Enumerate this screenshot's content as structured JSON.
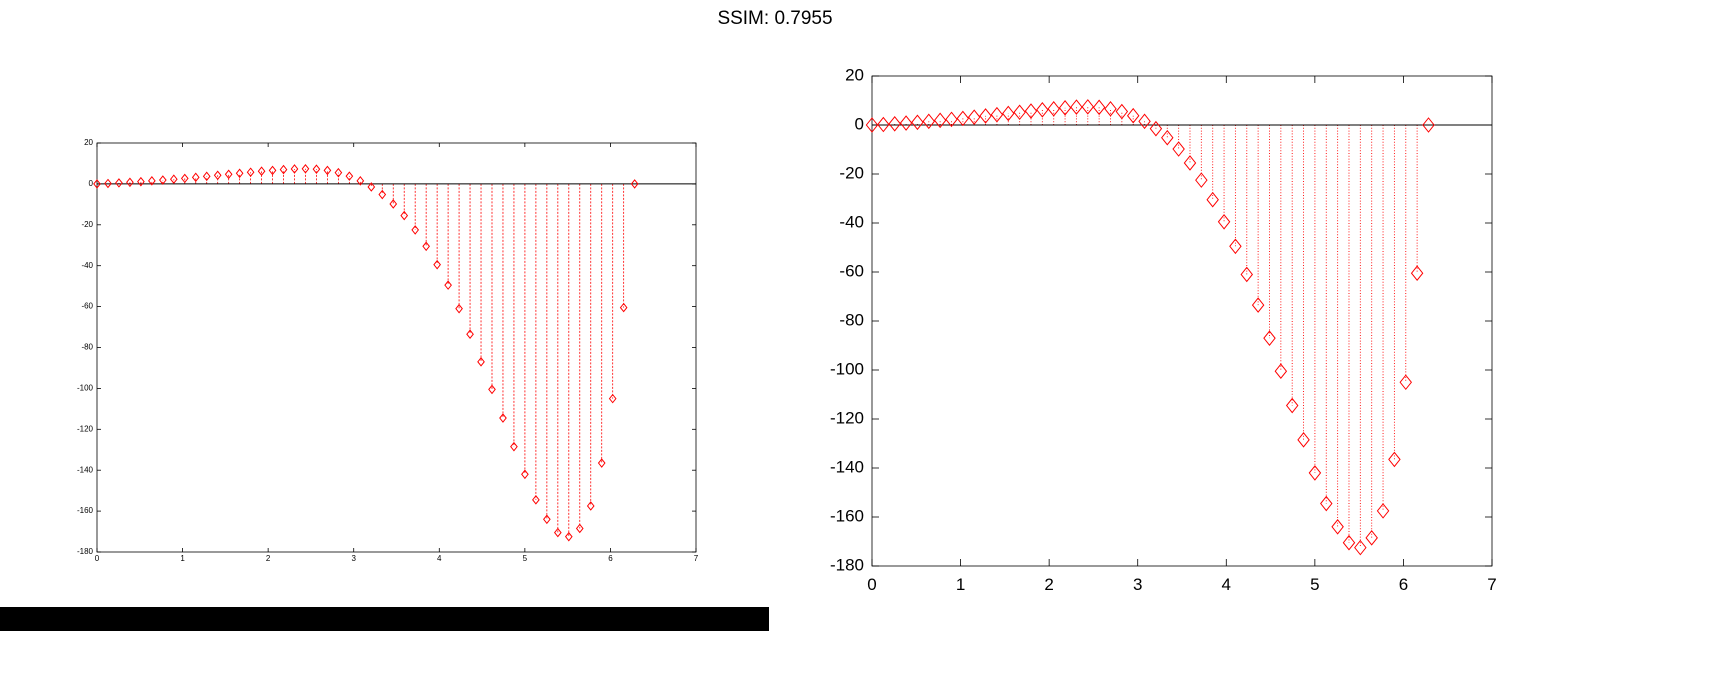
{
  "title": "SSIM: 0.7955",
  "chart_data": [
    {
      "type": "stem",
      "xlim": [
        0,
        7
      ],
      "ylim": [
        -180,
        20
      ],
      "xticks": [
        "0",
        "1",
        "2",
        "3",
        "4",
        "5",
        "6",
        "7"
      ],
      "yticks": [
        "20",
        "0",
        "-20",
        "-40",
        "-60",
        "-80",
        "-100",
        "-120",
        "-140",
        "-160",
        "-180"
      ],
      "marker": "diamond",
      "stem_style": "dashed",
      "color": "#ff0000",
      "baseline_color": "#000000",
      "x": [
        0,
        0.1282,
        0.2564,
        0.3847,
        0.5129,
        0.6411,
        0.7693,
        0.8976,
        1.0258,
        1.154,
        1.2822,
        1.4104,
        1.5387,
        1.6669,
        1.7951,
        1.9233,
        2.0515,
        2.1798,
        2.308,
        2.4362,
        2.5644,
        2.6927,
        2.8209,
        2.9491,
        3.0773,
        3.2055,
        3.3338,
        3.462,
        3.5902,
        3.7184,
        3.8466,
        3.9749,
        4.1031,
        4.2313,
        4.3595,
        4.4878,
        4.616,
        4.7442,
        4.8724,
        5.0006,
        5.1289,
        5.2571,
        5.3853,
        5.5135,
        5.6417,
        5.77,
        5.8982,
        6.0264,
        6.1546,
        6.2832
      ],
      "y": [
        0,
        0.2,
        0.5,
        0.8,
        1.1,
        1.5,
        1.9,
        2.3,
        2.7,
        3.2,
        3.7,
        4.2,
        4.7,
        5.2,
        5.7,
        6.2,
        6.6,
        7.0,
        7.3,
        7.4,
        7.2,
        6.6,
        5.5,
        3.8,
        1.5,
        -1.5,
        -5.2,
        -9.8,
        -15.5,
        -22.5,
        -30.5,
        -39.5,
        -49.5,
        -61,
        -73.5,
        -87,
        -100.5,
        -114.5,
        -128.5,
        -142,
        -154.5,
        -164,
        -170.5,
        -172.5,
        -168.5,
        -157.5,
        -136.5,
        -105,
        -60.5,
        0
      ]
    },
    {
      "type": "stem",
      "xlim": [
        0,
        7
      ],
      "ylim": [
        -180,
        20
      ],
      "xticks": [
        "0",
        "1",
        "2",
        "3",
        "4",
        "5",
        "6",
        "7"
      ],
      "yticks": [
        "20",
        "0",
        "-20",
        "-40",
        "-60",
        "-80",
        "-100",
        "-120",
        "-140",
        "-160",
        "-180"
      ],
      "marker": "diamond",
      "stem_style": "dotted",
      "color": "#ff0000",
      "baseline_color": "#000000",
      "x": [
        0,
        0.1282,
        0.2564,
        0.3847,
        0.5129,
        0.6411,
        0.7693,
        0.8976,
        1.0258,
        1.154,
        1.2822,
        1.4104,
        1.5387,
        1.6669,
        1.7951,
        1.9233,
        2.0515,
        2.1798,
        2.308,
        2.4362,
        2.5644,
        2.6927,
        2.8209,
        2.9491,
        3.0773,
        3.2055,
        3.3338,
        3.462,
        3.5902,
        3.7184,
        3.8466,
        3.9749,
        4.1031,
        4.2313,
        4.3595,
        4.4878,
        4.616,
        4.7442,
        4.8724,
        5.0006,
        5.1289,
        5.2571,
        5.3853,
        5.5135,
        5.6417,
        5.77,
        5.8982,
        6.0264,
        6.1546,
        6.2832
      ],
      "y": [
        0,
        0.2,
        0.5,
        0.8,
        1.1,
        1.5,
        1.9,
        2.3,
        2.7,
        3.2,
        3.7,
        4.2,
        4.7,
        5.2,
        5.7,
        6.2,
        6.6,
        7.0,
        7.3,
        7.4,
        7.2,
        6.6,
        5.5,
        3.8,
        1.5,
        -1.5,
        -5.2,
        -9.8,
        -15.5,
        -22.5,
        -30.5,
        -39.5,
        -49.5,
        -61,
        -73.5,
        -87,
        -100.5,
        -114.5,
        -128.5,
        -142,
        -154.5,
        -164,
        -170.5,
        -172.5,
        -168.5,
        -157.5,
        -136.5,
        -105,
        -60.5,
        0
      ]
    }
  ]
}
